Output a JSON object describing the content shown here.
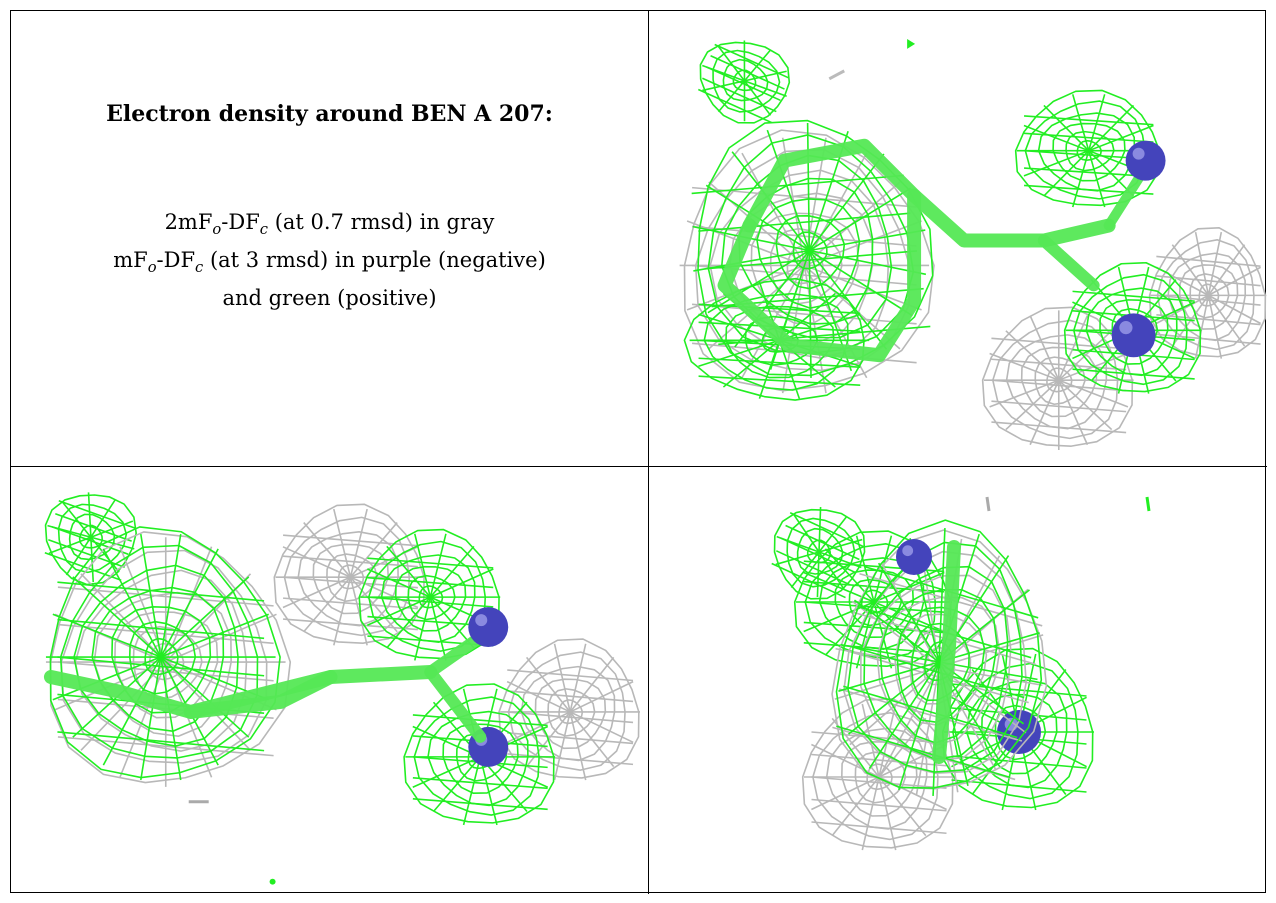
{
  "caption": {
    "title": "Electron density around BEN A 207:",
    "line1_pre": "2mF",
    "line1_sub1": "o",
    "line1_mid": "-DF",
    "line1_sub2": "c",
    "line1_post": " (at 0.7 rmsd) in gray",
    "line2_pre": "mF",
    "line2_sub1": "o",
    "line2_mid": "-DF",
    "line2_sub2": "c",
    "line2_post": " (at 3 rmsd) in purple (negative)",
    "line3": "and green (positive)"
  },
  "colors": {
    "positive_mesh": "#22ee22",
    "twofofc_mesh": "#b8b8b8",
    "ligand_stick": "#55e855",
    "nitrogen": "#4444bb"
  },
  "views": [
    {
      "name": "view-top-right"
    },
    {
      "name": "view-bottom-left"
    },
    {
      "name": "view-bottom-right"
    }
  ]
}
